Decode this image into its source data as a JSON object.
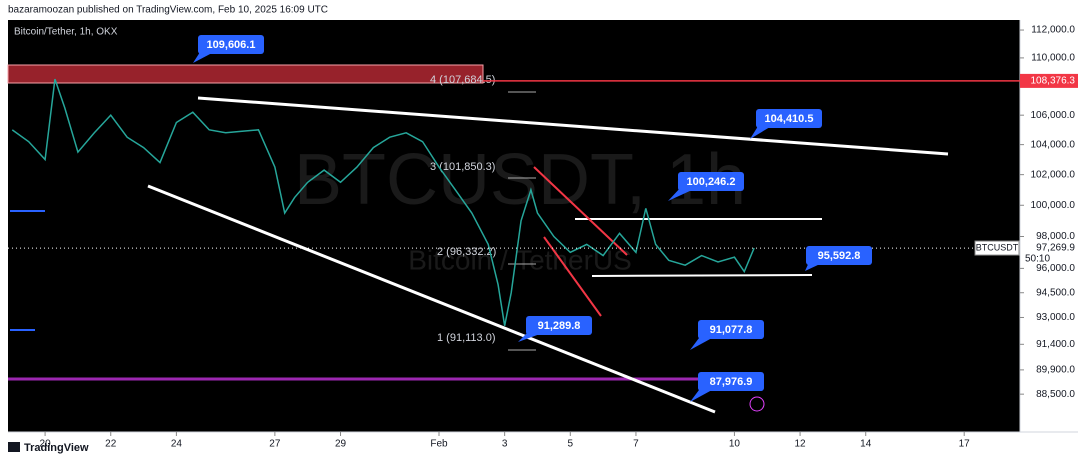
{
  "header": {
    "publisher": "bazaramoozan published on TradingView.com, Feb 10, 2025 16:09 UTC",
    "footer": "TradingView"
  },
  "chart_data": {
    "type": "line",
    "title": "Bitcoin/Tether, 1h, OKX",
    "watermark": "BTCUSDT, 1h",
    "watermark_sub": "Bitcoin / TetherUS",
    "log_scale": true,
    "x": [
      19.0,
      19.5,
      20.0,
      20.3,
      20.6,
      21.0,
      21.5,
      22.0,
      22.5,
      23.0,
      23.5,
      24.0,
      24.5,
      25.0,
      25.5,
      26.0,
      26.5,
      27.0,
      27.3,
      27.6,
      28.0,
      28.5,
      29.0,
      29.5,
      30.0,
      30.5,
      31.0,
      31.5,
      32.0,
      32.5,
      33.0,
      33.5,
      33.8,
      34.0,
      34.2,
      34.5,
      34.8,
      35.0,
      35.5,
      36.0,
      36.5,
      37.0,
      37.5,
      38.0,
      38.3,
      38.6,
      39.0,
      39.5,
      40.0,
      40.5,
      41.0,
      41.3,
      41.6
    ],
    "series": [
      {
        "name": "BTCUSDT",
        "color": "#26a69a",
        "values": [
          105000,
          104200,
          103000,
          108500,
          106500,
          103500,
          104800,
          106000,
          104500,
          103800,
          102800,
          105500,
          106200,
          105000,
          104800,
          104900,
          105000,
          102500,
          99500,
          100500,
          101500,
          102300,
          101500,
          102500,
          103800,
          104500,
          104800,
          104200,
          102500,
          101000,
          99500,
          97500,
          95000,
          92500,
          94500,
          99000,
          101000,
          99500,
          98000,
          97000,
          97500,
          96800,
          98200,
          97000,
          99800,
          97500,
          96500,
          96200,
          96800,
          96400,
          96700,
          95800,
          97270
        ]
      }
    ],
    "xlim": [
      18.87,
      49.7
    ],
    "xticks": [
      20,
      22,
      24,
      27,
      29,
      {
        "value": 32,
        "label": "Feb"
      },
      {
        "value": 34,
        "label": "3"
      },
      {
        "value": 36,
        "label": "5"
      },
      {
        "value": 38,
        "label": "7"
      },
      {
        "value": 41,
        "label": "10"
      },
      {
        "value": 43,
        "label": "12"
      },
      {
        "value": 45,
        "label": "14"
      },
      {
        "value": 48,
        "label": "17"
      }
    ],
    "ylim": [
      86360,
      112730
    ],
    "yticks": [
      {
        "value": 112000,
        "label": "112,000.0"
      },
      {
        "value": 110000,
        "label": "110,000.0"
      },
      {
        "value": 106000,
        "label": "106,000.0"
      },
      {
        "value": 104000,
        "label": "104,000.0"
      },
      {
        "value": 102000,
        "label": "102,000.0"
      },
      {
        "value": 100000,
        "label": "100,000.0"
      },
      {
        "value": 98000,
        "label": "98,000.0"
      },
      {
        "value": 96000,
        "label": "96,000.0"
      },
      {
        "value": 94500,
        "label": "94,500.0"
      },
      {
        "value": 93000,
        "label": "93,000.0"
      },
      {
        "value": 91400,
        "label": "91,400.0"
      },
      {
        "value": 89900,
        "label": "89,900.0"
      },
      {
        "value": 88500,
        "label": "88,500.0"
      }
    ],
    "annotations": [
      {
        "value": 109606.1,
        "label": "109,606.1"
      },
      {
        "value": 104410.5,
        "label": "104,410.5"
      },
      {
        "value": 100246.2,
        "label": "100,246.2"
      },
      {
        "value": 95592.8,
        "label": "95,592.8"
      },
      {
        "value": 91289.8,
        "label": "91,289.8"
      },
      {
        "value": 91077.8,
        "label": "91,077.8"
      },
      {
        "value": 87976.9,
        "label": "87,976.9"
      }
    ],
    "fib_levels": [
      "4 (107,684.5)",
      "3 (101,850.3)",
      "2 (96,332.2)",
      "1 (91,113.0)"
    ],
    "last_price": {
      "symbol": "BTCUSDT",
      "value": 97269.9,
      "label": "97,269.9",
      "countdown": "50:10"
    },
    "resistance": {
      "value": 108376.3,
      "label": "108,376.3",
      "color": "#f23645"
    }
  }
}
